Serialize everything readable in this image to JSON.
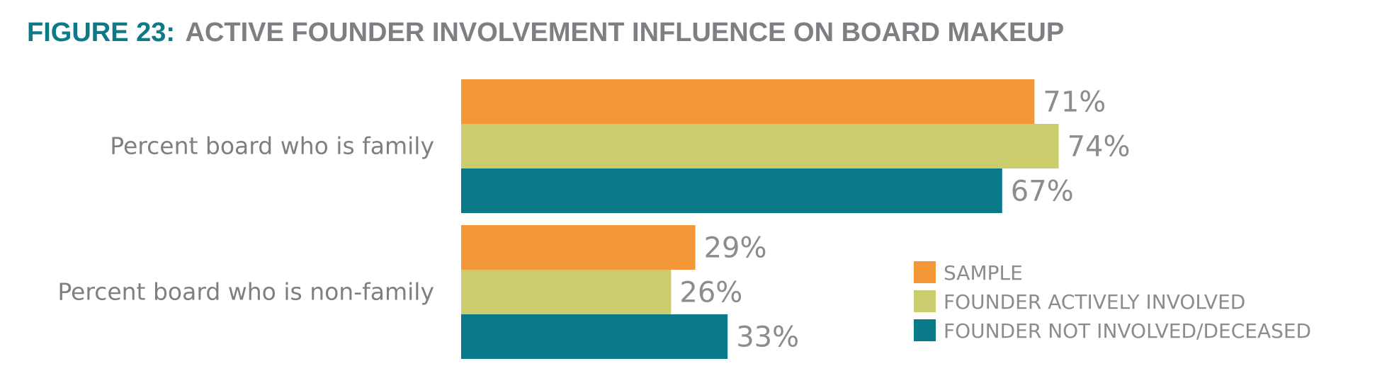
{
  "title": {
    "prefix": "FIGURE 23:",
    "text": "ACTIVE FOUNDER INVOLVEMENT INFLUENCE ON BOARD MAKEUP"
  },
  "colors": {
    "title_prefix": "#0f7a87",
    "title_text": "#7d7f82"
  },
  "chart_data": {
    "type": "bar",
    "orientation": "horizontal",
    "categories": [
      "Percent board who is family",
      "Percent board who is non-family"
    ],
    "series": [
      {
        "name": "SAMPLE",
        "color": "#f39738",
        "values": [
          71,
          29
        ]
      },
      {
        "name": "FOUNDER ACTIVELY INVOLVED",
        "color": "#cbcd6c",
        "values": [
          74,
          26
        ]
      },
      {
        "name": "FOUNDER NOT INVOLVED/DECEASED",
        "color": "#0a7a88",
        "values": [
          67,
          33
        ]
      }
    ],
    "value_suffix": "%",
    "xlim": [
      0,
      100
    ],
    "grid": false,
    "legend_position": "bottom-right"
  }
}
